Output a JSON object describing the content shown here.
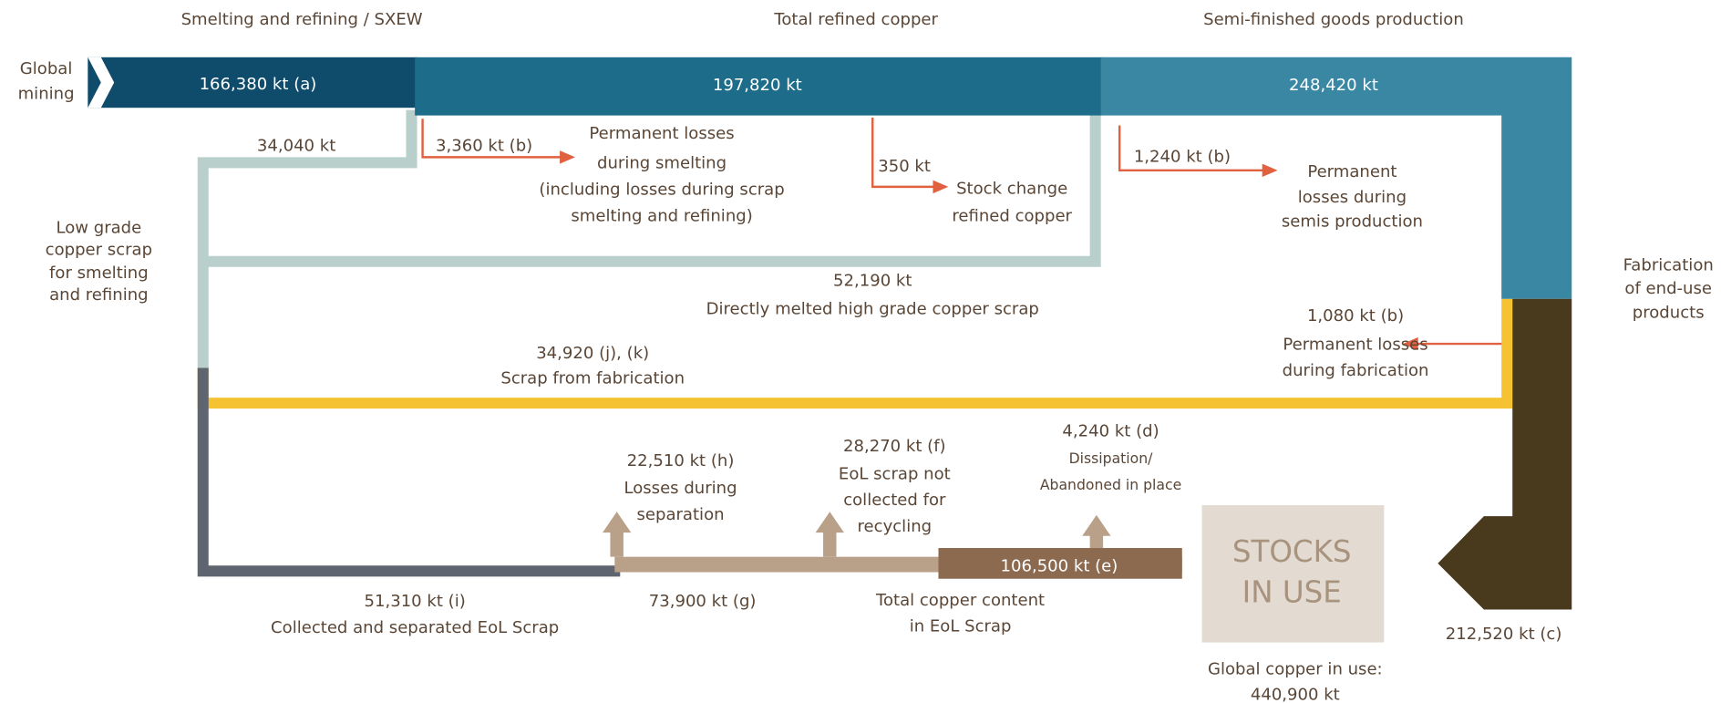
{
  "headers": [
    "Smelting and refining / SXEW",
    "Total refined copper",
    "Semi-finished goods production"
  ],
  "mining": [
    "Global",
    "mining"
  ],
  "mined": "166,380 kt (a)",
  "refined": "197,820 kt",
  "semis": "248,420 kt",
  "low_grade_amount": "34,040 kt",
  "low_grade_label": [
    "Low grade",
    "copper scrap",
    "for smelting",
    "and refining"
  ],
  "smelt_loss_amount": "3,360 kt (b)",
  "smelt_loss_label": [
    "Permanent losses",
    "during smelting",
    "(including losses during scrap",
    "smelting and refining)"
  ],
  "stock_change_amount": "350 kt",
  "stock_change_label": [
    "Stock change",
    "refined copper"
  ],
  "semis_loss_amount": "1,240 kt (b)",
  "semis_loss_label": [
    "Permanent",
    "losses during",
    "semis production"
  ],
  "fabrication": [
    "Fabrication",
    "of end-use",
    "products"
  ],
  "direct_amount": "52,190 kt",
  "direct_label": "Directly melted high grade copper scrap",
  "fab_loss_amount": "1,080 kt (b)",
  "fab_loss_label": [
    "Permanent losses",
    "during fabrication"
  ],
  "fab_scrap_amount": "34,920 (j), (k)",
  "fab_scrap_label": "Scrap from fabrication",
  "separation_amount": "22,510 kt (h)",
  "separation_label": [
    "Losses during",
    "separation"
  ],
  "not_collected_amount": "28,270 kt (f)",
  "not_collected_label": [
    "EoL scrap not",
    "collected for",
    "recycling"
  ],
  "dissipation_amount": "4,240 kt (d)",
  "dissipation_label": [
    "Dissipation/",
    "Abandoned in place"
  ],
  "eol_total_amount": "106,500 kt (e)",
  "eol_total_label": [
    "Total copper content",
    "in EoL Scrap"
  ],
  "collected_amount": "51,310 kt (i)",
  "collected_label": "Collected and separated EoL Scrap",
  "g_amount": "73,900 kt (g)",
  "stocks": [
    "STOCKS",
    "IN USE"
  ],
  "use_label": "Global copper in use:",
  "use_amount": "440,900 kt",
  "end_use_amount": "212,520 kt (c)"
}
